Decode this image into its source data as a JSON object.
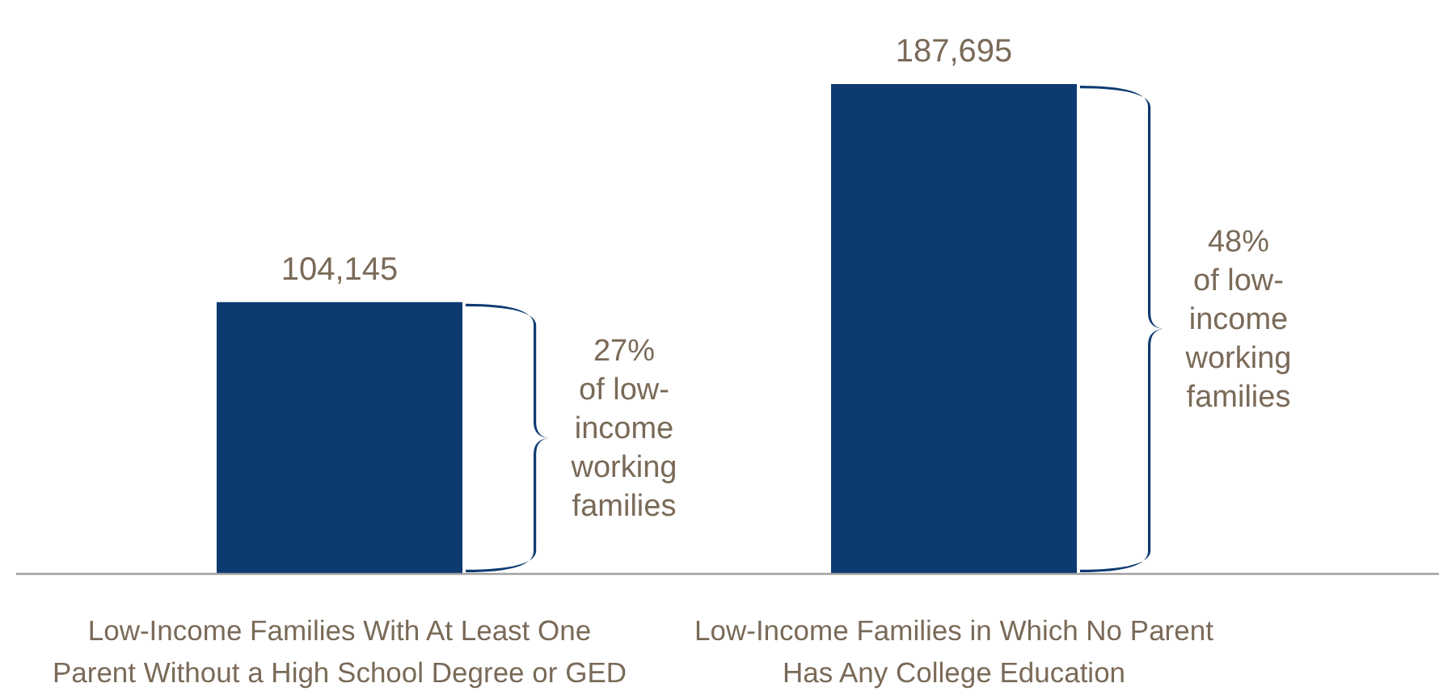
{
  "chart_data": {
    "type": "bar",
    "categories": [
      "Low-Income Families With At Least One\nParent Without a High School Degree or GED",
      "Low-Income Families in Which No Parent\nHas Any College Education"
    ],
    "values": [
      104145,
      187695
    ],
    "color": "#0e3a72",
    "data_labels": true,
    "value_labels": [
      "104,145",
      "187,695"
    ],
    "annotations": [
      "27%\nof low-\nincome\nworking\nfamilies",
      "48%\nof low-\nincome\nworking\nfamilies"
    ]
  }
}
